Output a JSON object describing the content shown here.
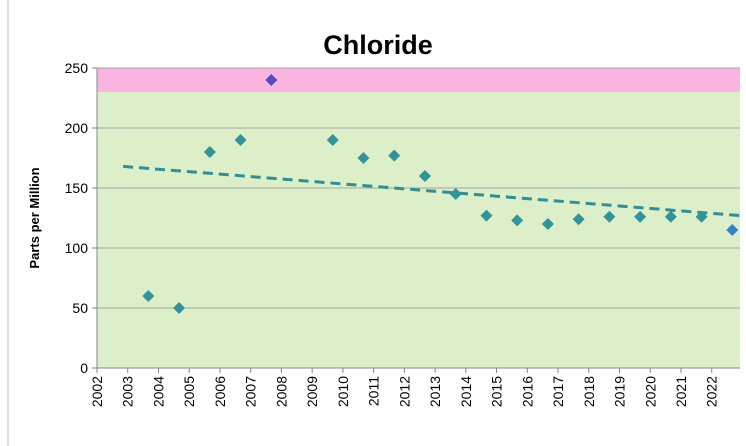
{
  "chart_data": {
    "type": "scatter",
    "title": "Chloride",
    "y_label": "Parts per Million",
    "x": [
      2003.67,
      2004.67,
      2005.67,
      2006.67,
      2007.67,
      2009.67,
      2010.67,
      2011.67,
      2012.67,
      2013.67,
      2014.67,
      2015.67,
      2016.67,
      2017.67,
      2018.67,
      2019.67,
      2020.67,
      2021.67,
      2022.67
    ],
    "values": [
      60,
      50,
      180,
      190,
      240,
      190,
      175,
      177,
      160,
      145,
      127,
      123,
      120,
      124,
      126,
      126,
      126,
      126,
      115
    ],
    "colors": [
      "#31949b",
      "#31949b",
      "#31949b",
      "#31949b",
      "#4b4fc0",
      "#31949b",
      "#31949b",
      "#31949b",
      "#31949b",
      "#31949b",
      "#31949b",
      "#31949b",
      "#31949b",
      "#31949b",
      "#31949b",
      "#31949b",
      "#31949b",
      "#31949b",
      "#2f87c8"
    ],
    "trend": {
      "x": [
        2002.85,
        2022.92
      ],
      "values": [
        168,
        127
      ],
      "color": "#2f8f98"
    },
    "bands": [
      {
        "range": [
          0,
          230
        ],
        "color": "#dcefc8"
      },
      {
        "range": [
          230,
          250
        ],
        "color": "#f9b4e0"
      }
    ],
    "xlim": [
      2002,
      2022.92
    ],
    "ylim": [
      0,
      250
    ],
    "xticks": [
      2002,
      2003,
      2004,
      2005,
      2006,
      2007,
      2008,
      2009,
      2010,
      2011,
      2012,
      2013,
      2014,
      2015,
      2016,
      2017,
      2018,
      2019,
      2020,
      2021,
      2022
    ],
    "yticks": [
      0,
      50,
      100,
      150,
      200,
      250
    ],
    "grid": true
  }
}
